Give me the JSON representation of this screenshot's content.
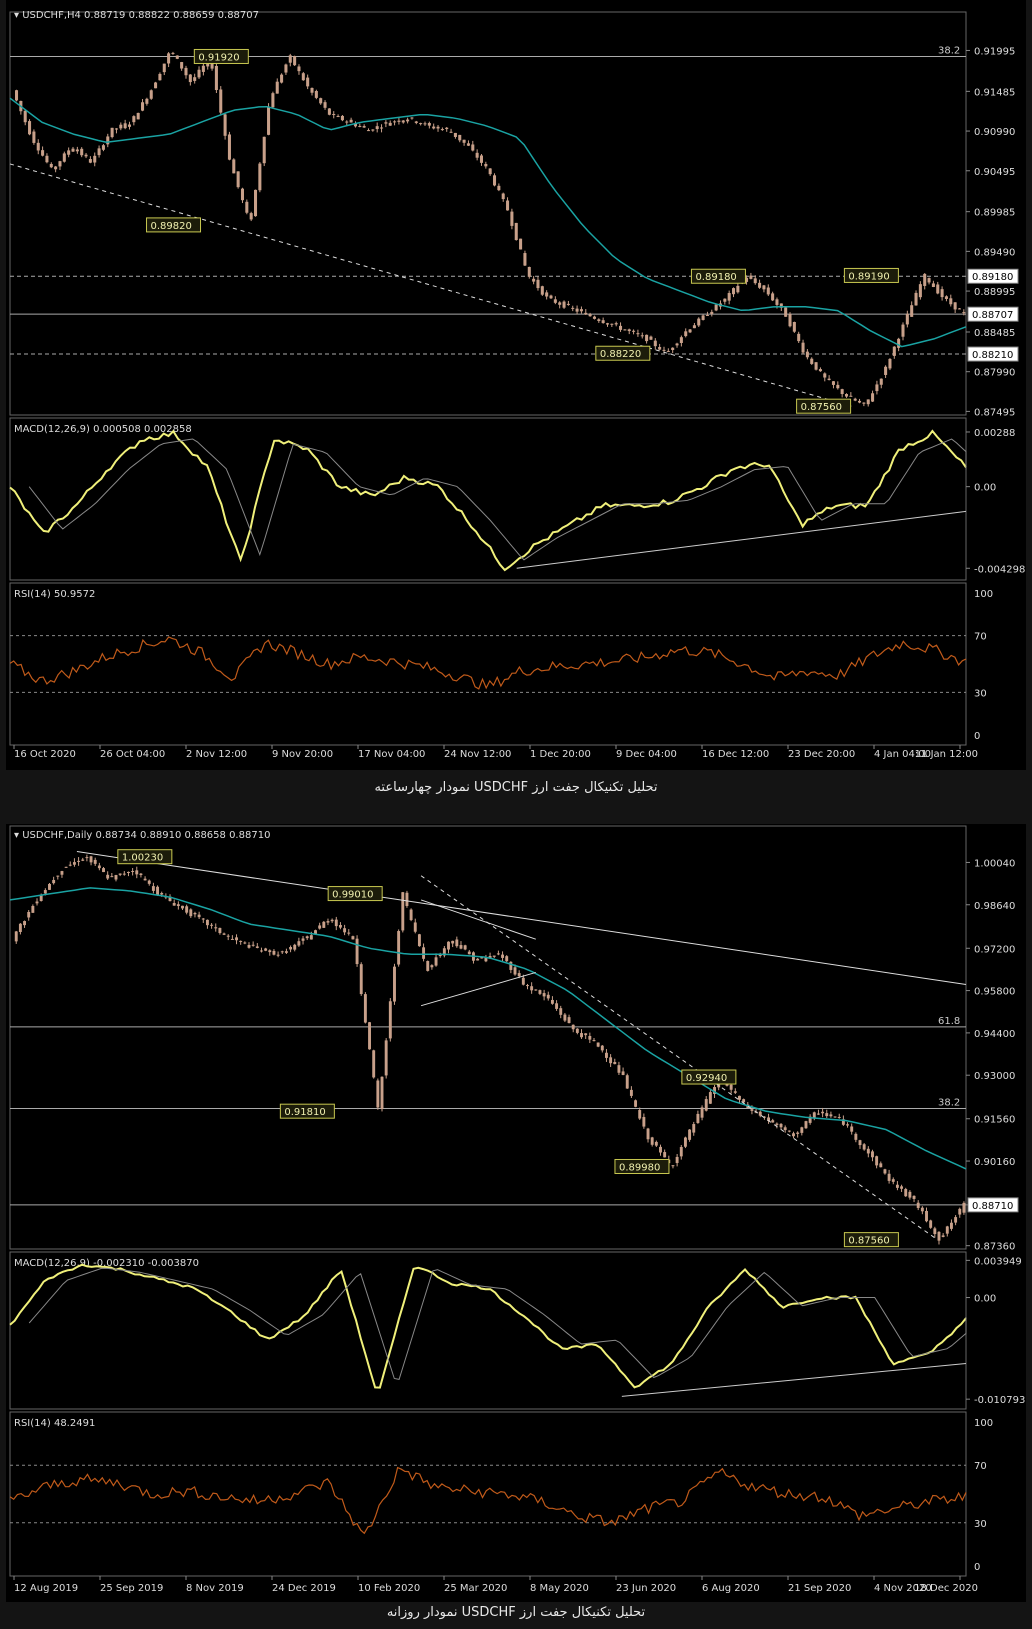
{
  "chart_data": [
    {
      "type": "candlestick",
      "title": "USDCHF,H4",
      "ohlc": "0.88719 0.88822 0.88659 0.88707",
      "timeframe": "H4",
      "price_ticks": [
        "0.91995",
        "0.91485",
        "0.90990",
        "0.90495",
        "0.89985",
        "0.89490",
        "0.88995",
        "0.88485",
        "0.87990",
        "0.87495"
      ],
      "x_ticks": [
        "16 Oct 2020",
        "26 Oct 04:00",
        "2 Nov 12:00",
        "9 Nov 20:00",
        "17 Nov 04:00",
        "24 Nov 12:00",
        "1 Dec 20:00",
        "9 Dec 04:00",
        "16 Dec 12:00",
        "23 Dec 20:00",
        "4 Jan 04:00",
        "11 Jan 12:00"
      ],
      "ylim": [
        0.8745,
        0.9225
      ],
      "price_path": [
        0.915,
        0.909,
        0.905,
        0.908,
        0.906,
        0.91,
        0.911,
        0.915,
        0.92,
        0.916,
        0.919,
        0.906,
        0.8982,
        0.914,
        0.9192,
        0.915,
        0.912,
        0.911,
        0.91,
        0.911,
        0.9115,
        0.9105,
        0.91,
        0.908,
        0.905,
        0.9,
        0.892,
        0.889,
        0.888,
        0.887,
        0.886,
        0.885,
        0.884,
        0.8822,
        0.885,
        0.887,
        0.889,
        0.8918,
        0.89,
        0.887,
        0.882,
        0.879,
        0.877,
        0.8756,
        0.88,
        0.886,
        0.8919,
        0.889,
        0.8871
      ],
      "ma_path": [
        0.914,
        0.911,
        0.9095,
        0.9085,
        0.909,
        0.9095,
        0.911,
        0.9125,
        0.913,
        0.912,
        0.91,
        0.911,
        0.9115,
        0.912,
        0.9115,
        0.9105,
        0.909,
        0.903,
        0.898,
        0.894,
        0.8915,
        0.89,
        0.8885,
        0.8875,
        0.888,
        0.888,
        0.8875,
        0.885,
        0.883,
        0.884,
        0.8855
      ],
      "levels": [
        {
          "value": 0.9192,
          "label": "38.2"
        },
        {
          "value": 0.8918,
          "label": "0.89180"
        },
        {
          "value": 0.88707,
          "label": "0.88707"
        },
        {
          "value": 0.8821,
          "label": "0.88210"
        }
      ],
      "annotations": [
        "0.91920",
        "0.89820",
        "0.88220",
        "0.89180",
        "0.89190",
        "0.87560"
      ],
      "macd": {
        "label": "MACD(12,26,9) 0.000508 0.002858",
        "ticks": [
          "0.00288",
          "0.00",
          "-0.004298"
        ],
        "ylim": [
          -0.0046,
          0.0033
        ],
        "path": [
          0.0,
          -0.0025,
          -0.001,
          0.001,
          0.0025,
          0.0028,
          0.001,
          -0.004,
          0.0025,
          0.002,
          0.0,
          -0.0005,
          0.0005,
          0.0,
          -0.002,
          -0.0043,
          -0.003,
          -0.002,
          -0.001,
          -0.001,
          -0.0008,
          0.0,
          0.001,
          0.0012,
          -0.002,
          -0.001,
          -0.001,
          0.002,
          0.0028,
          0.001
        ]
      },
      "rsi": {
        "label": "RSI(14) 50.9572",
        "ticks": [
          "100",
          "70",
          "30",
          "0"
        ],
        "ylim": [
          0,
          100
        ],
        "path": [
          50,
          38,
          45,
          55,
          62,
          68,
          58,
          40,
          65,
          58,
          50,
          55,
          52,
          48,
          42,
          34,
          45,
          48,
          50,
          52,
          55,
          60,
          58,
          50,
          40,
          45,
          42,
          55,
          65,
          60,
          51
        ]
      }
    },
    {
      "type": "candlestick",
      "title": "USDCHF,Daily",
      "ohlc": "0.88734 0.88910 0.88658 0.88710",
      "timeframe": "Daily",
      "price_ticks": [
        "1.00040",
        "0.98640",
        "0.97200",
        "0.95800",
        "0.94400",
        "0.93000",
        "0.91560",
        "0.90160",
        "0.88710",
        "0.87360"
      ],
      "x_ticks": [
        "12 Aug 2019",
        "25 Sep 2019",
        "8 Nov 2019",
        "24 Dec 2019",
        "10 Feb 2020",
        "25 Mar 2020",
        "8 May 2020",
        "23 Jun 2020",
        "6 Aug 2020",
        "21 Sep 2020",
        "4 Nov 2020",
        "18 Dec 2020"
      ],
      "ylim": [
        0.8725,
        1.0065
      ],
      "price_path": [
        0.975,
        0.988,
        0.998,
        1.0023,
        0.995,
        0.998,
        0.99,
        0.985,
        0.98,
        0.975,
        0.972,
        0.97,
        0.975,
        0.982,
        0.975,
        0.9181,
        0.9901,
        0.965,
        0.975,
        0.968,
        0.97,
        0.96,
        0.955,
        0.945,
        0.94,
        0.93,
        0.91,
        0.8998,
        0.915,
        0.9294,
        0.92,
        0.915,
        0.91,
        0.918,
        0.915,
        0.905,
        0.895,
        0.888,
        0.8756,
        0.8871
      ],
      "ma_path": [
        0.988,
        0.99,
        0.992,
        0.991,
        0.989,
        0.985,
        0.98,
        0.978,
        0.976,
        0.972,
        0.97,
        0.97,
        0.969,
        0.965,
        0.958,
        0.948,
        0.938,
        0.93,
        0.922,
        0.918,
        0.916,
        0.915,
        0.912,
        0.905,
        0.899
      ],
      "levels": [
        {
          "value": 0.946,
          "label": "61.8"
        },
        {
          "value": 0.919,
          "label": "38.2"
        },
        {
          "value": 0.8871,
          "label": "0.88710"
        }
      ],
      "annotations": [
        "1.00230",
        "0.99010",
        "0.91810",
        "0.92940",
        "0.89980",
        "0.87560"
      ],
      "macd": {
        "label": "MACD(12,26,9) -0.002310 -0.003870",
        "ticks": [
          "0.003949",
          "0.00",
          "-0.010793"
        ],
        "ylim": [
          -0.0112,
          0.0042
        ],
        "path": [
          -0.003,
          0.002,
          0.0035,
          0.003,
          0.002,
          0.001,
          -0.0015,
          -0.0045,
          -0.002,
          0.003,
          -0.0105,
          0.0035,
          0.0015,
          0.001,
          -0.002,
          -0.0055,
          -0.005,
          -0.0095,
          -0.007,
          -0.001,
          0.003,
          -0.001,
          0.0,
          0.0,
          -0.007,
          -0.006,
          -0.0023
        ],
        "support_line": true
      },
      "rsi": {
        "label": "RSI(14) 48.2491",
        "ticks": [
          "100",
          "70",
          "30",
          "0"
        ],
        "ylim": [
          0,
          100
        ],
        "path": [
          45,
          55,
          60,
          58,
          50,
          52,
          48,
          45,
          50,
          58,
          20,
          68,
          55,
          52,
          50,
          45,
          35,
          30,
          40,
          45,
          65,
          55,
          50,
          48,
          35,
          40,
          45,
          48
        ]
      }
    }
  ],
  "captions": [
    "تحلیل تکنیکال جفت ارز USDCHF نمودار چهارساعته",
    "تحلیل تکنیکال جفت ارز USDCHF نمودار روزانه"
  ],
  "colors": {
    "price": "#c8a08a",
    "ma": "#1aa3a3",
    "macd": "#f0f07a",
    "signal": "#888888",
    "rsi": "#c05a1a",
    "label_box": "#c8c850"
  }
}
